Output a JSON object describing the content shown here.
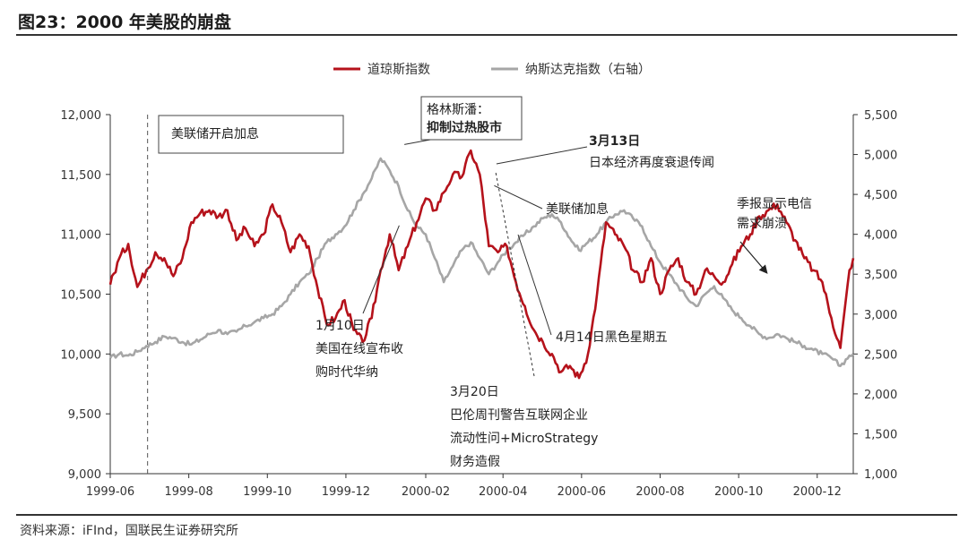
{
  "header": {
    "title": "图23：2000 年美股的崩盘"
  },
  "footer": {
    "source": "资料来源：iFInd，国联民生证券研究所"
  },
  "colors": {
    "dow": "#b5121b",
    "nasdaq": "#a6a6a6",
    "axis": "#333333"
  },
  "chart_data": {
    "type": "line",
    "title": "",
    "x_ticks": [
      "1999-06",
      "1999-08",
      "1999-10",
      "1999-12",
      "2000-02",
      "2000-04",
      "2000-06",
      "2000-08",
      "2000-10",
      "2000-12"
    ],
    "x_range": [
      "1999-06-01",
      "2000-12-29"
    ],
    "y_left": {
      "min": 9000,
      "max": 12000,
      "ticks": [
        "9,000",
        "9,500",
        "10,000",
        "10,500",
        "11,000",
        "11,500",
        "12,000"
      ]
    },
    "y_right": {
      "min": 1000,
      "max": 5500,
      "ticks": [
        "1,000",
        "1,500",
        "2,000",
        "2,500",
        "3,000",
        "3,500",
        "4,000",
        "4,500",
        "5,000",
        "5,500"
      ]
    },
    "legend": {
      "placement": "top-center"
    },
    "series": [
      {
        "name": "道琼斯指数",
        "axis": "left",
        "points": [
          [
            "1999-06-01",
            10580
          ],
          [
            "1999-06-08",
            10800
          ],
          [
            "1999-06-15",
            10920
          ],
          [
            "1999-06-22",
            10560
          ],
          [
            "1999-06-29",
            10700
          ],
          [
            "1999-07-06",
            10850
          ],
          [
            "1999-07-13",
            10800
          ],
          [
            "1999-07-20",
            10650
          ],
          [
            "1999-07-27",
            10800
          ],
          [
            "1999-08-03",
            11100
          ],
          [
            "1999-08-10",
            11180
          ],
          [
            "1999-08-17",
            11200
          ],
          [
            "1999-08-24",
            11150
          ],
          [
            "1999-08-31",
            11200
          ],
          [
            "1999-09-07",
            10950
          ],
          [
            "1999-09-14",
            11050
          ],
          [
            "1999-09-21",
            10900
          ],
          [
            "1999-09-28",
            11000
          ],
          [
            "1999-10-05",
            11250
          ],
          [
            "1999-10-12",
            11100
          ],
          [
            "1999-10-19",
            10850
          ],
          [
            "1999-10-26",
            11000
          ],
          [
            "1999-11-02",
            10900
          ],
          [
            "1999-11-09",
            10550
          ],
          [
            "1999-11-16",
            10250
          ],
          [
            "1999-11-23",
            10300
          ],
          [
            "1999-11-30",
            10450
          ],
          [
            "1999-12-07",
            10200
          ],
          [
            "1999-12-14",
            10100
          ],
          [
            "1999-12-21",
            10300
          ],
          [
            "1999-12-28",
            10700
          ],
          [
            "2000-01-04",
            11000
          ],
          [
            "2000-01-11",
            10700
          ],
          [
            "2000-01-18",
            10900
          ],
          [
            "2000-01-25",
            11100
          ],
          [
            "2000-02-01",
            11300
          ],
          [
            "2000-02-08",
            11200
          ],
          [
            "2000-02-15",
            11350
          ],
          [
            "2000-02-22",
            11500
          ],
          [
            "2000-02-29",
            11480
          ],
          [
            "2000-03-07",
            11700
          ],
          [
            "2000-03-14",
            11500
          ],
          [
            "2000-03-21",
            10900
          ],
          [
            "2000-03-28",
            10850
          ],
          [
            "2000-04-04",
            10900
          ],
          [
            "2000-04-11",
            10600
          ],
          [
            "2000-04-18",
            10400
          ],
          [
            "2000-04-25",
            10200
          ],
          [
            "2000-05-02",
            10100
          ],
          [
            "2000-05-09",
            10000
          ],
          [
            "2000-05-16",
            9850
          ],
          [
            "2000-05-23",
            9900
          ],
          [
            "2000-05-30",
            9800
          ],
          [
            "2000-06-06",
            10000
          ],
          [
            "2000-06-13",
            10500
          ],
          [
            "2000-06-20",
            11100
          ],
          [
            "2000-06-27",
            11000
          ],
          [
            "2000-07-04",
            10900
          ],
          [
            "2000-07-11",
            10700
          ],
          [
            "2000-07-18",
            10600
          ],
          [
            "2000-07-25",
            10800
          ],
          [
            "2000-08-01",
            10500
          ],
          [
            "2000-08-08",
            10700
          ],
          [
            "2000-08-15",
            10800
          ],
          [
            "2000-08-22",
            10600
          ],
          [
            "2000-08-29",
            10500
          ],
          [
            "2000-09-05",
            10700
          ],
          [
            "2000-09-12",
            10650
          ],
          [
            "2000-09-19",
            10600
          ],
          [
            "2000-09-26",
            10750
          ],
          [
            "2000-10-03",
            10900
          ],
          [
            "2000-10-10",
            11000
          ],
          [
            "2000-10-17",
            11150
          ],
          [
            "2000-10-24",
            11200
          ],
          [
            "2000-10-31",
            11250
          ],
          [
            "2000-11-07",
            11100
          ],
          [
            "2000-11-14",
            10950
          ],
          [
            "2000-11-21",
            10800
          ],
          [
            "2000-11-28",
            10700
          ],
          [
            "2000-12-05",
            10600
          ],
          [
            "2000-12-12",
            10300
          ],
          [
            "2000-12-19",
            10050
          ],
          [
            "2000-12-26",
            10700
          ],
          [
            "2000-12-29",
            10800
          ]
        ]
      },
      {
        "name": "纳斯达克指数（右轴）",
        "axis": "right",
        "points": [
          [
            "1999-06-01",
            2450
          ],
          [
            "1999-06-08",
            2500
          ],
          [
            "1999-06-15",
            2480
          ],
          [
            "1999-06-22",
            2530
          ],
          [
            "1999-06-29",
            2600
          ],
          [
            "1999-07-06",
            2650
          ],
          [
            "1999-07-13",
            2720
          ],
          [
            "1999-07-20",
            2700
          ],
          [
            "1999-07-27",
            2650
          ],
          [
            "1999-08-03",
            2620
          ],
          [
            "1999-08-10",
            2680
          ],
          [
            "1999-08-17",
            2750
          ],
          [
            "1999-08-24",
            2800
          ],
          [
            "1999-08-31",
            2750
          ],
          [
            "1999-09-07",
            2780
          ],
          [
            "1999-09-14",
            2850
          ],
          [
            "1999-09-21",
            2900
          ],
          [
            "1999-09-28",
            2950
          ],
          [
            "1999-10-05",
            3000
          ],
          [
            "1999-10-12",
            3100
          ],
          [
            "1999-10-19",
            3250
          ],
          [
            "1999-10-26",
            3400
          ],
          [
            "1999-11-02",
            3500
          ],
          [
            "1999-11-09",
            3700
          ],
          [
            "1999-11-16",
            3900
          ],
          [
            "1999-11-23",
            4000
          ],
          [
            "1999-11-30",
            4100
          ],
          [
            "1999-12-07",
            4300
          ],
          [
            "1999-12-14",
            4500
          ],
          [
            "1999-12-21",
            4700
          ],
          [
            "1999-12-28",
            4950
          ],
          [
            "2000-01-04",
            4800
          ],
          [
            "2000-01-11",
            4600
          ],
          [
            "2000-01-18",
            4300
          ],
          [
            "2000-01-25",
            4100
          ],
          [
            "2000-02-01",
            4000
          ],
          [
            "2000-02-08",
            3700
          ],
          [
            "2000-02-15",
            3400
          ],
          [
            "2000-02-22",
            3600
          ],
          [
            "2000-02-29",
            3800
          ],
          [
            "2000-03-07",
            3900
          ],
          [
            "2000-03-14",
            3700
          ],
          [
            "2000-03-21",
            3500
          ],
          [
            "2000-03-28",
            3650
          ],
          [
            "2000-04-04",
            3800
          ],
          [
            "2000-04-11",
            3900
          ],
          [
            "2000-04-18",
            4000
          ],
          [
            "2000-04-25",
            4100
          ],
          [
            "2000-05-02",
            4200
          ],
          [
            "2000-05-09",
            4250
          ],
          [
            "2000-05-16",
            4150
          ],
          [
            "2000-05-23",
            3950
          ],
          [
            "2000-05-30",
            3800
          ],
          [
            "2000-06-06",
            3900
          ],
          [
            "2000-06-13",
            4000
          ],
          [
            "2000-06-20",
            4150
          ],
          [
            "2000-06-27",
            4250
          ],
          [
            "2000-07-04",
            4300
          ],
          [
            "2000-07-11",
            4200
          ],
          [
            "2000-07-18",
            4100
          ],
          [
            "2000-07-25",
            3850
          ],
          [
            "2000-08-01",
            3650
          ],
          [
            "2000-08-08",
            3500
          ],
          [
            "2000-08-15",
            3350
          ],
          [
            "2000-08-22",
            3200
          ],
          [
            "2000-08-29",
            3100
          ],
          [
            "2000-09-05",
            3250
          ],
          [
            "2000-09-12",
            3350
          ],
          [
            "2000-09-19",
            3200
          ],
          [
            "2000-09-26",
            3050
          ],
          [
            "2000-10-03",
            2950
          ],
          [
            "2000-10-10",
            2850
          ],
          [
            "2000-10-17",
            2750
          ],
          [
            "2000-10-24",
            2700
          ],
          [
            "2000-10-31",
            2750
          ],
          [
            "2000-11-07",
            2700
          ],
          [
            "2000-11-14",
            2650
          ],
          [
            "2000-11-21",
            2600
          ],
          [
            "2000-11-28",
            2550
          ],
          [
            "2000-12-05",
            2500
          ],
          [
            "2000-12-12",
            2450
          ],
          [
            "2000-12-19",
            2350
          ],
          [
            "2000-12-26",
            2480
          ],
          [
            "2000-12-29",
            2500
          ]
        ]
      }
    ],
    "annotations": [
      {
        "id": "fed-hike-start",
        "lines": [
          "美联储开启加息"
        ],
        "boxed": true,
        "date": "1999-06-30",
        "vline": true
      },
      {
        "id": "greenspan",
        "lines": [
          "格林斯潘：",
          "抑制过热股市"
        ],
        "boxed": true,
        "bold_line": 1,
        "date": "2000-01-14",
        "value": 11720,
        "axis": "left"
      },
      {
        "id": "mar13",
        "lines": [
          "3月13日",
          "日本经济再度衰退传闻"
        ],
        "bold_line": 0,
        "date": "2000-03-13",
        "value": 4950,
        "axis": "right"
      },
      {
        "id": "fed-hike",
        "lines": [
          "美联储加息"
        ],
        "date": "2000-03-21",
        "value": 4700,
        "axis": "right"
      },
      {
        "id": "jan10",
        "lines": [
          "1月10日",
          "美国在线宣布收",
          "购时代华纳"
        ],
        "date": "2000-01-10",
        "value": 4200,
        "axis": "right"
      },
      {
        "id": "apr14",
        "lines": [
          "4月14日黑色星期五"
        ],
        "date": "2000-04-14",
        "value": 3300,
        "axis": "right"
      },
      {
        "id": "mar20",
        "lines": [
          "3月20日",
          "巴伦周刊警告互联网企业",
          "流动性问+MicroStrategy",
          "财务造假"
        ],
        "date": "2000-03-10",
        "value": 4900,
        "axis": "right"
      },
      {
        "id": "earnings",
        "lines": [
          "季报显示电信",
          "需求崩溃"
        ],
        "date": "2000-10-17",
        "value": 3650,
        "axis": "right"
      }
    ]
  }
}
